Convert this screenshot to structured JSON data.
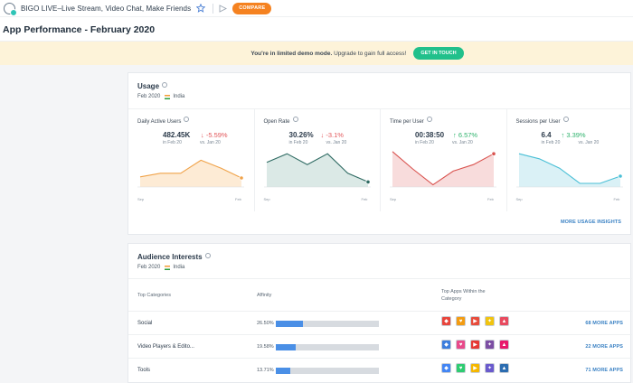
{
  "topbar": {
    "app_title": "BIGO LIVE–Live Stream, Video Chat, Make Friends",
    "compare_label": "COMPARE"
  },
  "page": {
    "title": "App Performance - February 2020"
  },
  "banner": {
    "bold_text": "You're in limited demo mode.",
    "text": " Upgrade to gain full access!",
    "cta_label": "GET IN TOUCH"
  },
  "usage": {
    "title": "Usage",
    "period": "Feb 2020",
    "country": "India",
    "more_label": "MORE USAGE INSIGHTS",
    "metrics": [
      {
        "label": "Daily Active Users",
        "value": "482.45K",
        "change": "↓ -5.59%",
        "direction": "down",
        "ref_from": "in Feb 20",
        "ref_to": "vs. Jan 20",
        "x_start": "Sep",
        "x_end": "Feb",
        "color": "#f0a34a",
        "fill": "#fdebd5",
        "series": [
          0.28,
          0.38,
          0.38,
          0.74,
          0.52,
          0.25
        ]
      },
      {
        "label": "Open Rate",
        "value": "30.26%",
        "change": "↓ -3.1%",
        "direction": "down",
        "ref_from": "in Feb 20",
        "ref_to": "vs. Jan 20",
        "x_start": "Sep",
        "x_end": "Feb",
        "color": "#2f6b63",
        "fill": "#dbe9e6",
        "series": [
          0.68,
          0.92,
          0.62,
          0.92,
          0.38,
          0.14
        ]
      },
      {
        "label": "Time per User",
        "value": "00:38:50",
        "change": "↑ 6.57%",
        "direction": "up",
        "ref_from": "in Feb 20",
        "ref_to": "vs. Jan 20",
        "x_start": "Sep",
        "x_end": "Feb",
        "color": "#d9534f",
        "fill": "#f8dcdc",
        "series": [
          0.98,
          0.5,
          0.06,
          0.44,
          0.62,
          0.92
        ]
      },
      {
        "label": "Sessions per User",
        "value": "6.4",
        "change": "↑ 3.39%",
        "direction": "up",
        "ref_from": "in Feb 20",
        "ref_to": "vs. Jan 20",
        "x_start": "Sep",
        "x_end": "Feb",
        "color": "#49bfd6",
        "fill": "#daf1f6",
        "series": [
          0.92,
          0.78,
          0.52,
          0.1,
          0.1,
          0.3
        ]
      }
    ]
  },
  "interests": {
    "title": "Audience Interests",
    "period": "Feb 2020",
    "country": "India",
    "headers": {
      "category": "Top Categories",
      "affinity": "Affinity",
      "top_apps": "Top Apps Within the Category"
    },
    "rows": [
      {
        "category": "Social",
        "affinity": "26.50%",
        "affinity_value": 26.5,
        "more": "68 MORE APPS",
        "apps": [
          "#e8453c",
          "#f39c12",
          "#e74c3c",
          "#f1c40f",
          "#e84a5f"
        ]
      },
      {
        "category": "Video Players & Edito...",
        "affinity": "19.58%",
        "affinity_value": 19.58,
        "more": "22 MORE APPS",
        "apps": [
          "#3b7ddd",
          "#e84a8a",
          "#e53935",
          "#7b4ea3",
          "#e8176b"
        ]
      },
      {
        "category": "Tools",
        "affinity": "13.71%",
        "affinity_value": 13.71,
        "more": "71 MORE APPS",
        "apps": [
          "#4285f4",
          "#2ecc71",
          "#f5b700",
          "#6a5acd",
          "#2b6cb0"
        ]
      }
    ]
  }
}
